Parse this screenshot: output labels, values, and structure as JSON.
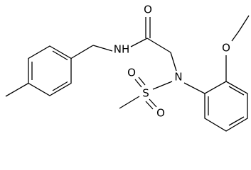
{
  "atoms": {
    "labels": [
      "O",
      "NH",
      "N",
      "S",
      "O",
      "O",
      "O"
    ]
  }
}
